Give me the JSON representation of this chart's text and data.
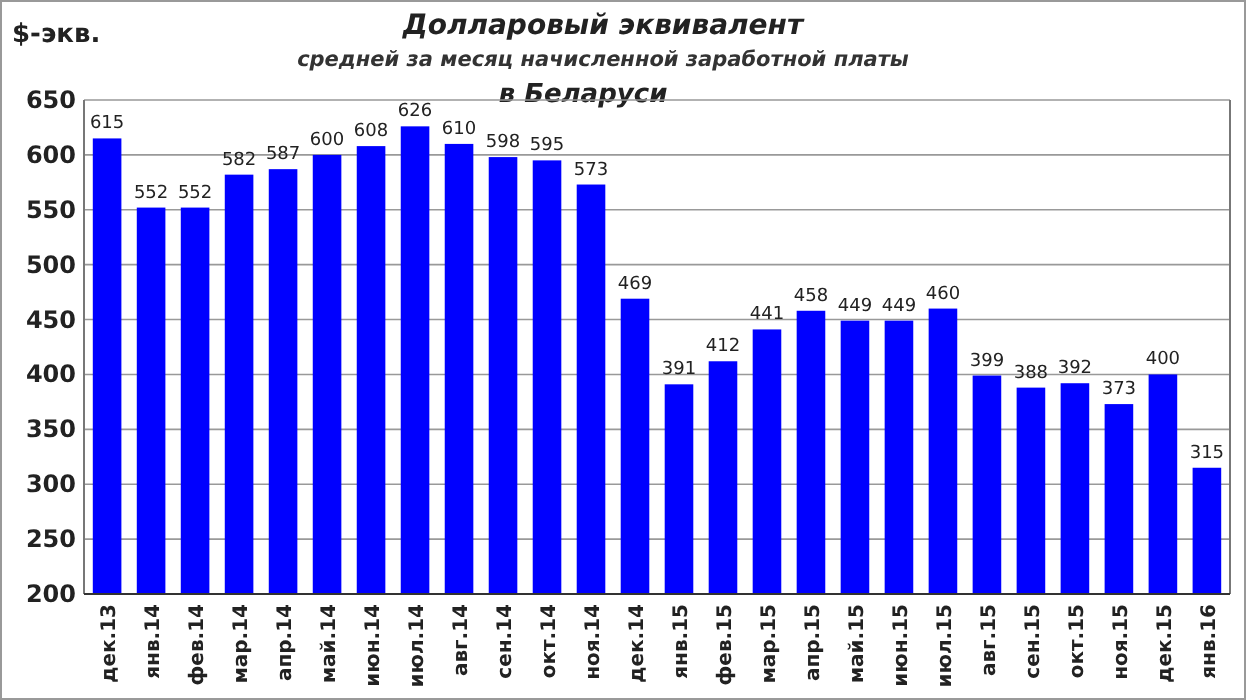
{
  "chart_data": {
    "type": "bar",
    "title": "Долларовый эквивалент",
    "subtitle": "средней за месяц  начисленной  заработной платы",
    "annotations": [
      "в Беларуси"
    ],
    "ylabel": "$-экв.",
    "categories": [
      "дек.13",
      "янв.14",
      "фев.14",
      "мар.14",
      "апр.14",
      "май.14",
      "июн.14",
      "июл.14",
      "авг.14",
      "сен.14",
      "окт.14",
      "ноя.14",
      "дек.14",
      "янв.15",
      "фев.15",
      "мар.15",
      "апр.15",
      "май.15",
      "июн.15",
      "июл.15",
      "авг.15",
      "сен.15",
      "окт.15",
      "ноя.15",
      "дек.15",
      "янв.16"
    ],
    "values": [
      615,
      552,
      552,
      582,
      587,
      600,
      608,
      626,
      610,
      598,
      595,
      573,
      469,
      391,
      412,
      441,
      458,
      449,
      449,
      460,
      399,
      388,
      392,
      373,
      400,
      315
    ],
    "color": "#0000ff",
    "ylim": [
      200,
      650
    ],
    "yticks": [
      200,
      250,
      300,
      350,
      400,
      450,
      500,
      550,
      600,
      650
    ],
    "grid": "y",
    "data_labels": true
  }
}
